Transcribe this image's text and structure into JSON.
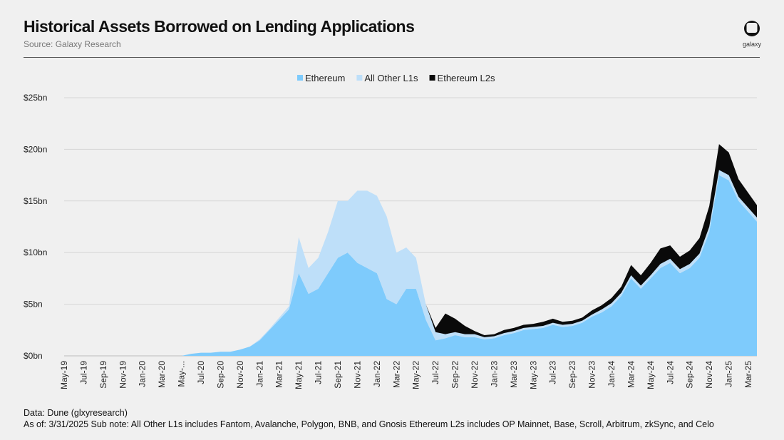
{
  "header": {
    "title": "Historical Assets Borrowed on Lending Applications",
    "source": "Source: Galaxy Research",
    "logo": "galaxy"
  },
  "footer": {
    "data": "Data: Dune (glxyresearch)",
    "note": "As of: 3/31/2025   Sub note: All Other L1s includes Fantom, Avalanche, Polygon, BNB, and Gnosis Ethereum L2s includes OP Mainnet, Base, Scroll, Arbitrum, zkSync, and Celo"
  },
  "colors": {
    "Ethereum": "#7ecbfc",
    "All Other L1s": "#bedff9",
    "Ethereum L2s": "#0a0a0a"
  },
  "chart_data": {
    "type": "area",
    "stacked": true,
    "title": "Historical Assets Borrowed on Lending Applications",
    "ylabel": "",
    "xlabel": "",
    "ylim": [
      0,
      25
    ],
    "yticks": [
      "$0bn",
      "$5bn",
      "$10bn",
      "$15bn",
      "$20bn",
      "$25bn"
    ],
    "xticks": [
      "May-19",
      "Jul-19",
      "Sep-19",
      "Nov-19",
      "Jan-20",
      "Mar-20",
      "May-...",
      "Jul-20",
      "Sep-20",
      "Nov-20",
      "Jan-21",
      "Mar-21",
      "May-21",
      "Jul-21",
      "Sep-21",
      "Nov-21",
      "Jan-22",
      "Mar-22",
      "May-22",
      "Jul-22",
      "Sep-22",
      "Nov-22",
      "Jan-23",
      "Mar-23",
      "May-23",
      "Jul-23",
      "Sep-23",
      "Nov-23",
      "Jan-24",
      "Mar-24",
      "May-24",
      "Jul-24",
      "Sep-24",
      "Nov-24",
      "Jan-25",
      "Mar-25"
    ],
    "legend": "top-center",
    "grid": true,
    "x_start": "May-19",
    "x_step": "month",
    "series": [
      {
        "name": "Ethereum",
        "values": [
          0,
          0,
          0,
          0,
          0,
          0,
          0,
          0,
          0,
          0,
          0,
          0,
          0,
          0.2,
          0.3,
          0.3,
          0.4,
          0.4,
          0.6,
          0.9,
          1.5,
          2.5,
          3.5,
          4.5,
          8,
          6,
          6.5,
          8,
          9.5,
          10,
          9,
          8.5,
          8,
          5.5,
          5,
          6.5,
          6.5,
          3.5,
          1.5,
          1.7,
          2,
          1.8,
          1.8,
          1.6,
          1.7,
          2,
          2.2,
          2.5,
          2.6,
          2.7,
          3,
          2.8,
          2.9,
          3.2,
          3.8,
          4.2,
          4.8,
          5.8,
          7.5,
          6.5,
          7.5,
          8.5,
          9,
          8,
          8.5,
          9.5,
          12,
          17.5,
          17,
          15,
          13
        ]
      },
      {
        "name": "All Other L1s",
        "values": [
          0,
          0,
          0,
          0,
          0,
          0,
          0,
          0,
          0,
          0,
          0,
          0,
          0,
          0,
          0,
          0,
          0,
          0,
          0,
          0,
          0.1,
          0.1,
          0.2,
          0.3,
          3.5,
          2.5,
          3,
          4,
          5.5,
          5,
          7,
          7.5,
          7.5,
          8,
          5,
          4,
          3,
          1.5,
          0.8,
          0.4,
          0.3,
          0.3,
          0.3,
          0.2,
          0.2,
          0.2,
          0.2,
          0.2,
          0.2,
          0.2,
          0.2,
          0.2,
          0.2,
          0.2,
          0.2,
          0.3,
          0.3,
          0.3,
          0.3,
          0.3,
          0.3,
          0.4,
          0.4,
          0.4,
          0.4,
          0.4,
          0.5,
          0.5,
          0.5,
          0.4,
          0.4
        ]
      },
      {
        "name": "Ethereum L2s",
        "values": [
          0,
          0,
          0,
          0,
          0,
          0,
          0,
          0,
          0,
          0,
          0,
          0,
          0,
          0,
          0,
          0,
          0,
          0,
          0,
          0,
          0,
          0,
          0,
          0,
          0,
          0,
          0,
          0,
          0,
          0,
          0,
          0,
          0,
          0,
          0,
          0,
          0,
          0,
          0.4,
          2,
          1.3,
          0.8,
          0.3,
          0.2,
          0.2,
          0.3,
          0.3,
          0.3,
          0.3,
          0.4,
          0.4,
          0.3,
          0.3,
          0.3,
          0.4,
          0.4,
          0.5,
          0.6,
          1,
          1,
          1.2,
          1.5,
          1.3,
          1.2,
          1.3,
          1.5,
          2,
          2.5,
          2.2,
          1.7,
          1.2
        ]
      }
    ]
  }
}
